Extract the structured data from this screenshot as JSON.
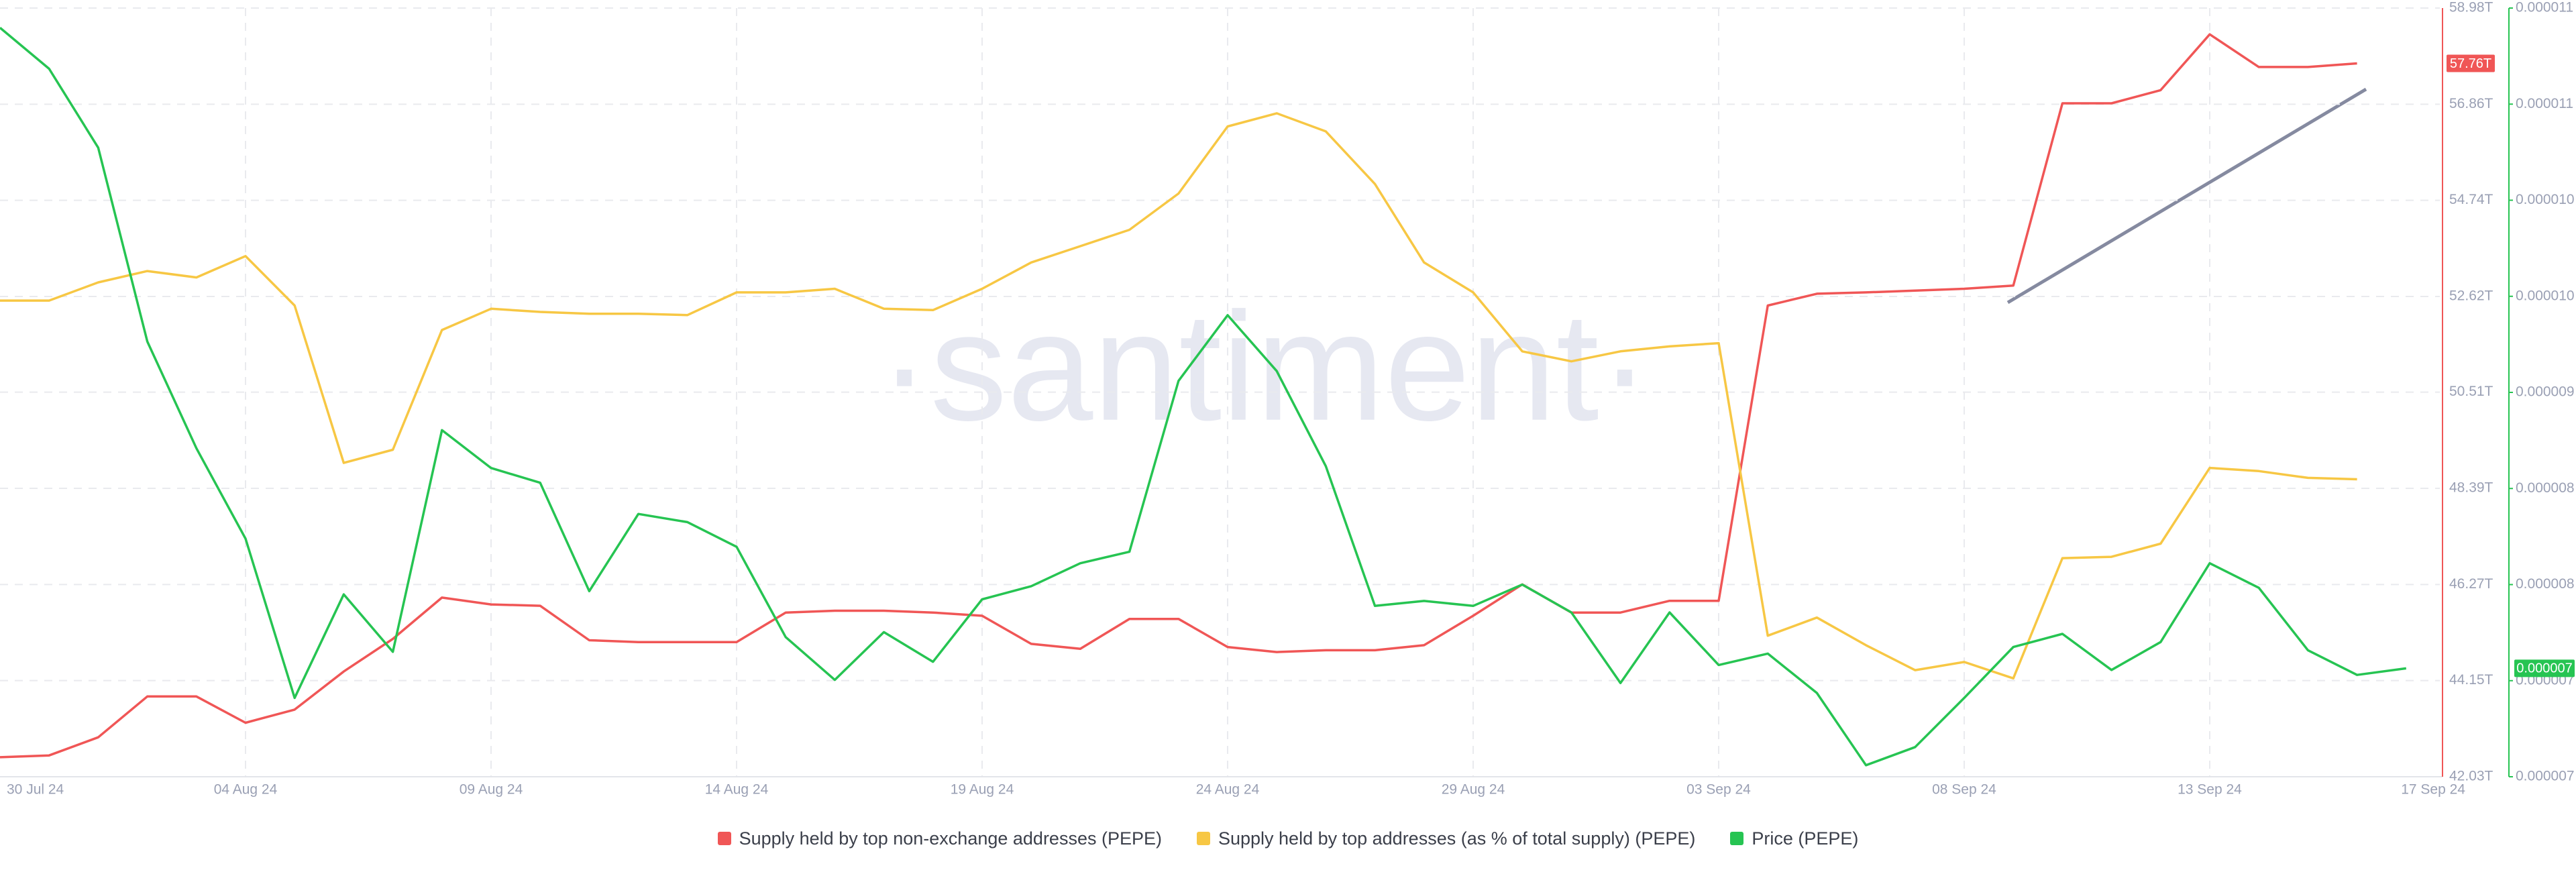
{
  "chart_data": {
    "type": "line",
    "watermark": "·santiment·",
    "categories": [
      "30 Jul 24",
      null,
      null,
      null,
      null,
      "04 Aug 24",
      null,
      null,
      null,
      null,
      "09 Aug 24",
      null,
      null,
      null,
      null,
      "14 Aug 24",
      null,
      null,
      null,
      null,
      "19 Aug 24",
      null,
      null,
      null,
      null,
      "24 Aug 24",
      null,
      null,
      null,
      null,
      "29 Aug 24",
      null,
      null,
      null,
      null,
      "03 Sep 24",
      null,
      null,
      null,
      null,
      "08 Sep 24",
      null,
      null,
      null,
      null,
      "13 Sep 24",
      null,
      null,
      null,
      "17 Sep 24"
    ],
    "series": [
      {
        "name": "Supply held by top non-exchange addresses (PEPE)",
        "color": "#f05656",
        "axis": "y",
        "values": [
          42.46,
          42.5,
          42.9,
          43.8,
          43.8,
          43.22,
          43.51,
          44.35,
          45.07,
          45.98,
          45.83,
          45.8,
          45.04,
          45.0,
          45.0,
          45.0,
          45.65,
          45.69,
          45.69,
          45.65,
          45.58,
          44.96,
          44.85,
          45.51,
          45.51,
          44.89,
          44.78,
          44.82,
          44.82,
          44.93,
          45.58,
          46.27,
          45.65,
          45.65,
          45.91,
          45.91,
          52.42,
          52.68,
          52.71,
          52.75,
          52.79,
          52.86,
          56.88,
          56.88,
          57.17,
          58.4,
          57.68,
          57.68,
          57.76,
          null
        ],
        "value_labels": [
          null,
          null,
          null,
          null,
          null,
          null,
          null,
          null,
          null,
          null,
          null,
          null,
          null,
          null,
          null,
          null,
          null,
          null,
          null,
          null,
          null,
          null,
          null,
          null,
          null,
          null,
          null,
          null,
          null,
          null,
          null,
          null,
          null,
          null,
          null,
          null,
          null,
          null,
          null,
          null,
          null,
          null,
          null,
          null,
          null,
          null,
          null,
          null,
          "57.76T",
          null
        ]
      },
      {
        "name": "Supply held by top addresses (as % of total supply) (PEPE)",
        "color": "#f7c744",
        "axis": "y",
        "values": [
          52.53,
          52.53,
          52.93,
          53.18,
          53.04,
          53.51,
          52.42,
          48.95,
          49.24,
          51.88,
          52.35,
          52.28,
          52.24,
          52.24,
          52.21,
          52.71,
          52.71,
          52.79,
          52.35,
          52.32,
          52.79,
          53.37,
          53.73,
          54.09,
          54.89,
          56.37,
          56.66,
          56.26,
          55.1,
          53.37,
          52.71,
          51.41,
          51.19,
          51.41,
          51.52,
          51.59,
          45.14,
          45.54,
          44.93,
          44.38,
          44.56,
          44.2,
          46.85,
          46.88,
          47.17,
          48.84,
          48.77,
          48.62,
          48.59,
          null
        ]
      },
      {
        "name": "Price (PEPE)",
        "color": "#26c452",
        "axis": "y2",
        "values": [
          1.1277e-05,
          1.1021e-05,
          1.0528e-05,
          9.318e-06,
          8.651e-06,
          8.087e-06,
          7.092e-06,
          7.739e-06,
          7.38e-06,
          8.764e-06,
          8.528e-06,
          8.436e-06,
          7.759e-06,
          8.241e-06,
          8.19e-06,
          8.036e-06,
          7.472e-06,
          7.205e-06,
          7.503e-06,
          7.318e-06,
          7.708e-06,
          7.79e-06,
          7.933e-06,
          8.005e-06,
          9.072e-06,
          9.482e-06,
          9.133e-06,
          8.539e-06,
          7.667e-06,
          7.698e-06,
          7.667e-06,
          7.8e-06,
          7.626e-06,
          7.185e-06,
          7.626e-06,
          7.298e-06,
          7.369e-06,
          7.123e-06,
          6.672e-06,
          6.785e-06,
          7.092e-06,
          7.41e-06,
          7.492e-06,
          7.267e-06,
          7.441e-06,
          7.933e-06,
          7.78e-06,
          7.39e-06,
          7.236e-06,
          7.277e-06
        ],
        "value_labels": [
          null,
          null,
          null,
          null,
          null,
          null,
          null,
          null,
          null,
          null,
          null,
          null,
          null,
          null,
          null,
          null,
          null,
          null,
          null,
          null,
          null,
          null,
          null,
          null,
          null,
          null,
          null,
          null,
          null,
          null,
          null,
          null,
          null,
          null,
          null,
          null,
          null,
          null,
          null,
          null,
          null,
          null,
          null,
          null,
          null,
          null,
          null,
          null,
          null,
          "0.000007"
        ]
      }
    ],
    "ylim": [
      42.03,
      58.98
    ],
    "yticks": [
      {
        "value": 42.03,
        "label": "42.03T"
      },
      {
        "value": 44.15,
        "label": "44.15T"
      },
      {
        "value": 46.27,
        "label": "46.27T"
      },
      {
        "value": 48.39,
        "label": "48.39T"
      },
      {
        "value": 50.51,
        "label": "50.51T"
      },
      {
        "value": 52.62,
        "label": "52.62T"
      },
      {
        "value": 54.74,
        "label": "54.74T"
      },
      {
        "value": 56.86,
        "label": "56.86T"
      },
      {
        "value": 58.98,
        "label": "58.98T"
      }
    ],
    "y2lim": [
      6.6e-06,
      1.14e-05
    ],
    "y2ticks": [
      {
        "value": 6.6e-06,
        "label": "0.000007"
      },
      {
        "value": 7.2e-06,
        "label": "0.000007"
      },
      {
        "value": 7.8e-06,
        "label": "0.000008"
      },
      {
        "value": 8.4e-06,
        "label": "0.000008"
      },
      {
        "value": 9e-06,
        "label": "0.000009"
      },
      {
        "value": 9.6e-06,
        "label": "0.000010"
      },
      {
        "value": 1.02e-05,
        "label": "0.000010"
      },
      {
        "value": 1.08e-05,
        "label": "0.000011"
      },
      {
        "value": 1.14e-05,
        "label": "0.000011"
      }
    ],
    "grid": true,
    "legend": "bottom"
  }
}
